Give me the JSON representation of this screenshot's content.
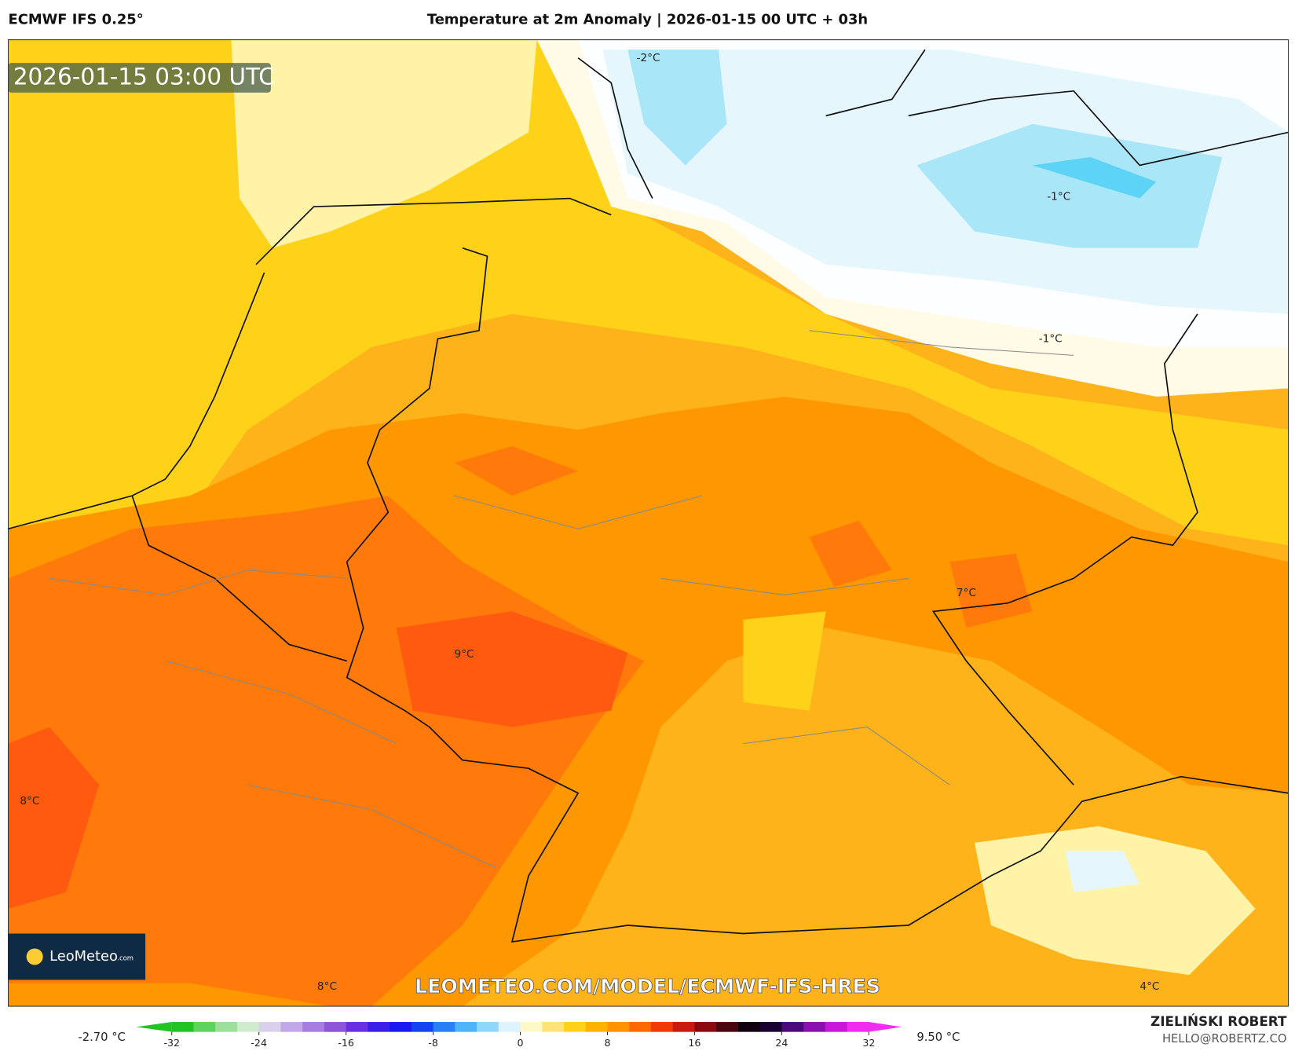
{
  "header": {
    "model": "ECMWF IFS 0.25°",
    "title": "Temperature at 2m Anomaly | 2026-01-15 00 UTC + 03h"
  },
  "map": {
    "timestamp": "2026-01-15 03:00 UTC",
    "labels": [
      "-2°C",
      "-1°C",
      "-1°C",
      "7°C",
      "9°C",
      "8°C",
      "8°C",
      "4°C"
    ],
    "logo": "LeoMeteo",
    "logo_suffix": ".com",
    "url": "LEOMETEO.COM/MODEL/ECMWF-IFS-HRES"
  },
  "colorbar": {
    "min_label": "-2.70 °C",
    "max_label": "9.50 °C",
    "lim": [
      -32,
      32
    ],
    "ticks": [
      -32,
      -24,
      -16,
      -8,
      0,
      8,
      16,
      24,
      32
    ],
    "colors": [
      "#22c322",
      "#5fd35f",
      "#9ce09c",
      "#cfeccf",
      "#d9d0ec",
      "#c2a8e6",
      "#a77ee0",
      "#8f55d8",
      "#6a2fe0",
      "#3a1fe6",
      "#1a1af0",
      "#1444f0",
      "#2a7ff5",
      "#4fb4f8",
      "#8fd8fb",
      "#ddf3fd",
      "#fff8c8",
      "#ffe37a",
      "#ffd21a",
      "#ffb300",
      "#ff9400",
      "#ff6a00",
      "#f03a0a",
      "#c81a10",
      "#8a0a10",
      "#4a0610",
      "#100010",
      "#1a0030",
      "#4a0a7a",
      "#8a10b0",
      "#c818d8",
      "#f02cf0"
    ]
  },
  "footer": {
    "author": "ZIELIŃSKI ROBERT",
    "email": "HELLO@ROBERTZ.CO"
  }
}
